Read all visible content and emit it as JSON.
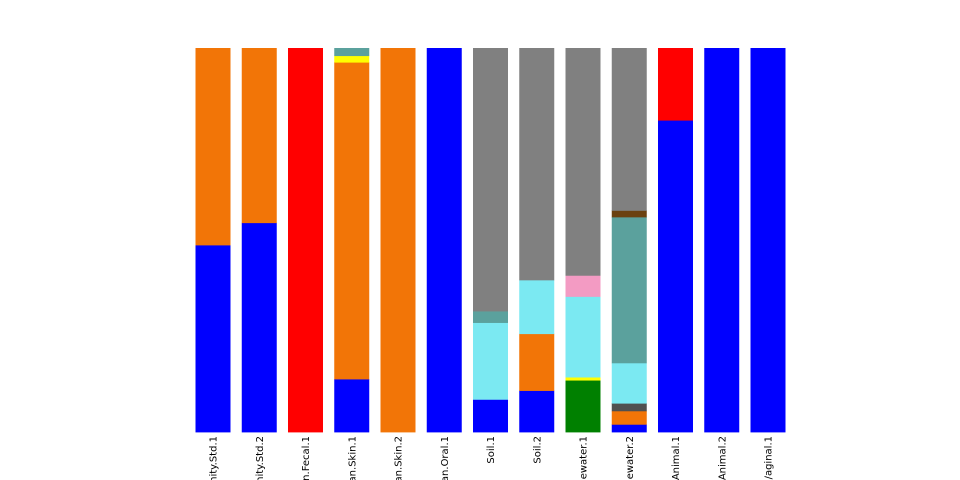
{
  "chart_data": {
    "type": "bar",
    "stacked": true,
    "normalized": true,
    "ylim": [
      0,
      1
    ],
    "title": "",
    "xlabel": "",
    "ylabel": "",
    "legend": "none",
    "categories": [
      "nity.Std.1",
      "nity.Std.2",
      "an.Fecal.1",
      "an.Skin.1",
      "an.Skin.2",
      "an.Oral.1",
      "Soil.1",
      "Soil.2",
      "ewater.1",
      "ewater.2",
      "Animal.1",
      "Animal.2",
      "/aginal.1"
    ],
    "series": [
      {
        "name": "blue",
        "color": "#0000ff",
        "values": [
          0.487,
          0.545,
          0,
          0.138,
          0,
          1.0,
          0.085,
          0.108,
          0,
          0.02,
          0.812,
          1.0,
          1.0
        ]
      },
      {
        "name": "red",
        "color": "#ff0000",
        "values": [
          0,
          0,
          1.0,
          0,
          0,
          0,
          0,
          0,
          0,
          0,
          0.188,
          0,
          0
        ]
      },
      {
        "name": "green",
        "color": "#008000",
        "values": [
          0,
          0,
          0,
          0,
          0,
          0,
          0,
          0,
          0.135,
          0,
          0,
          0,
          0
        ]
      },
      {
        "name": "orange",
        "color": "#f27507",
        "values": [
          0.513,
          0.455,
          0,
          0.825,
          1.0,
          0,
          0,
          0.148,
          0,
          0.035,
          0,
          0,
          0
        ]
      },
      {
        "name": "dark-gray",
        "color": "#505050",
        "values": [
          0,
          0,
          0,
          0,
          0,
          0,
          0,
          0,
          0,
          0.02,
          0,
          0,
          0
        ]
      },
      {
        "name": "yellow",
        "color": "#ffff00",
        "values": [
          0,
          0,
          0,
          0.017,
          0,
          0,
          0,
          0,
          0.008,
          0,
          0,
          0,
          0
        ]
      },
      {
        "name": "light-cyan",
        "color": "#7be9f2",
        "values": [
          0,
          0,
          0,
          0,
          0,
          0,
          0.2,
          0.14,
          0.21,
          0.105,
          0,
          0,
          0
        ]
      },
      {
        "name": "pink",
        "color": "#f39bc3",
        "values": [
          0,
          0,
          0,
          0,
          0,
          0,
          0,
          0,
          0.055,
          0,
          0,
          0,
          0
        ]
      },
      {
        "name": "teal",
        "color": "#5ba19d",
        "values": [
          0,
          0,
          0,
          0.02,
          0,
          0,
          0.03,
          0,
          0,
          0.38,
          0,
          0,
          0
        ]
      },
      {
        "name": "brown",
        "color": "#6b4110",
        "values": [
          0,
          0,
          0,
          0,
          0,
          0,
          0,
          0,
          0,
          0.017,
          0,
          0,
          0
        ]
      },
      {
        "name": "gray",
        "color": "#808080",
        "values": [
          0,
          0,
          0,
          0,
          0,
          0,
          0.685,
          0.604,
          0.592,
          0.423,
          0,
          0,
          0
        ]
      }
    ]
  }
}
